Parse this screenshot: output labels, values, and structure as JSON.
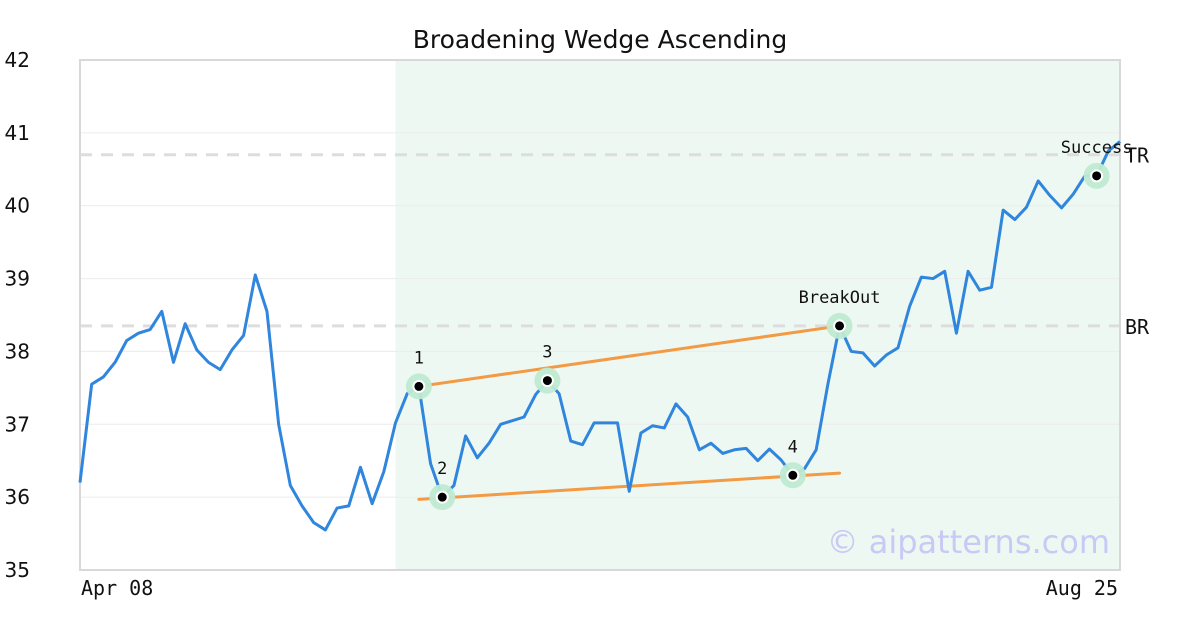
{
  "chart_data": {
    "type": "line",
    "title": "Broadening Wedge Ascending",
    "xlabel": "",
    "ylabel": "",
    "ylim": [
      35,
      42
    ],
    "yticks": [
      35,
      36,
      37,
      38,
      39,
      40,
      41,
      42
    ],
    "x_labels": {
      "start": "Apr 08",
      "end": "Aug 25"
    },
    "grid": true,
    "pattern_zone": {
      "from_index": 27,
      "to_index": 89,
      "color": "#eef8f3"
    },
    "colors": {
      "price": "#2f86dc",
      "trendline": "#f39a45",
      "marker": "#bfead2",
      "level": "#dddddd"
    },
    "series": [
      {
        "values": [
          36.2,
          37.55,
          37.65,
          37.85,
          38.15,
          38.25,
          38.3,
          38.55,
          37.85,
          38.38,
          38.02,
          37.85,
          37.75,
          38.02,
          38.22,
          39.05,
          38.55,
          37.0,
          36.16,
          35.88,
          35.65,
          35.55,
          35.85,
          35.88,
          36.41,
          35.91,
          36.35,
          37.02,
          37.42,
          37.52,
          36.46,
          36.0,
          36.16,
          36.84,
          36.54,
          36.74,
          37.0,
          37.05,
          37.1,
          37.41,
          37.6,
          37.42,
          36.77,
          36.72,
          37.02,
          37.02,
          37.02,
          36.08,
          36.88,
          36.98,
          36.95,
          37.28,
          37.1,
          36.65,
          36.74,
          36.6,
          36.65,
          36.67,
          36.5,
          36.66,
          36.51,
          36.3,
          36.39,
          36.65,
          37.55,
          38.35,
          38.0,
          37.98,
          37.8,
          37.95,
          38.05,
          38.62,
          39.02,
          39.0,
          39.1,
          38.25,
          39.1,
          38.84,
          38.88,
          39.94,
          39.81,
          39.98,
          40.34,
          40.14,
          39.97,
          40.16,
          40.41,
          40.41,
          40.75,
          40.88
        ]
      }
    ],
    "trendlines": [
      {
        "from": [
          29,
          37.52
        ],
        "to": [
          65,
          38.35
        ]
      },
      {
        "from": [
          29,
          35.97
        ],
        "to": [
          65,
          36.33
        ]
      }
    ],
    "points": [
      {
        "label": "1",
        "index": 29,
        "value": 37.52,
        "label_pos": "above"
      },
      {
        "label": "2",
        "index": 31,
        "value": 36.0,
        "label_pos": "above"
      },
      {
        "label": "3",
        "index": 40,
        "value": 37.6,
        "label_pos": "above"
      },
      {
        "label": "4",
        "index": 61,
        "value": 36.3,
        "label_pos": "above"
      },
      {
        "label": "BreakOut",
        "index": 65,
        "value": 38.35,
        "label_pos": "above"
      },
      {
        "label": "Success",
        "index": 87,
        "value": 40.41,
        "label_pos": "above"
      }
    ],
    "levels": [
      {
        "label": "TR",
        "value": 40.7
      },
      {
        "label": "BR",
        "value": 38.35
      }
    ],
    "watermark": "© aipatterns.com"
  }
}
